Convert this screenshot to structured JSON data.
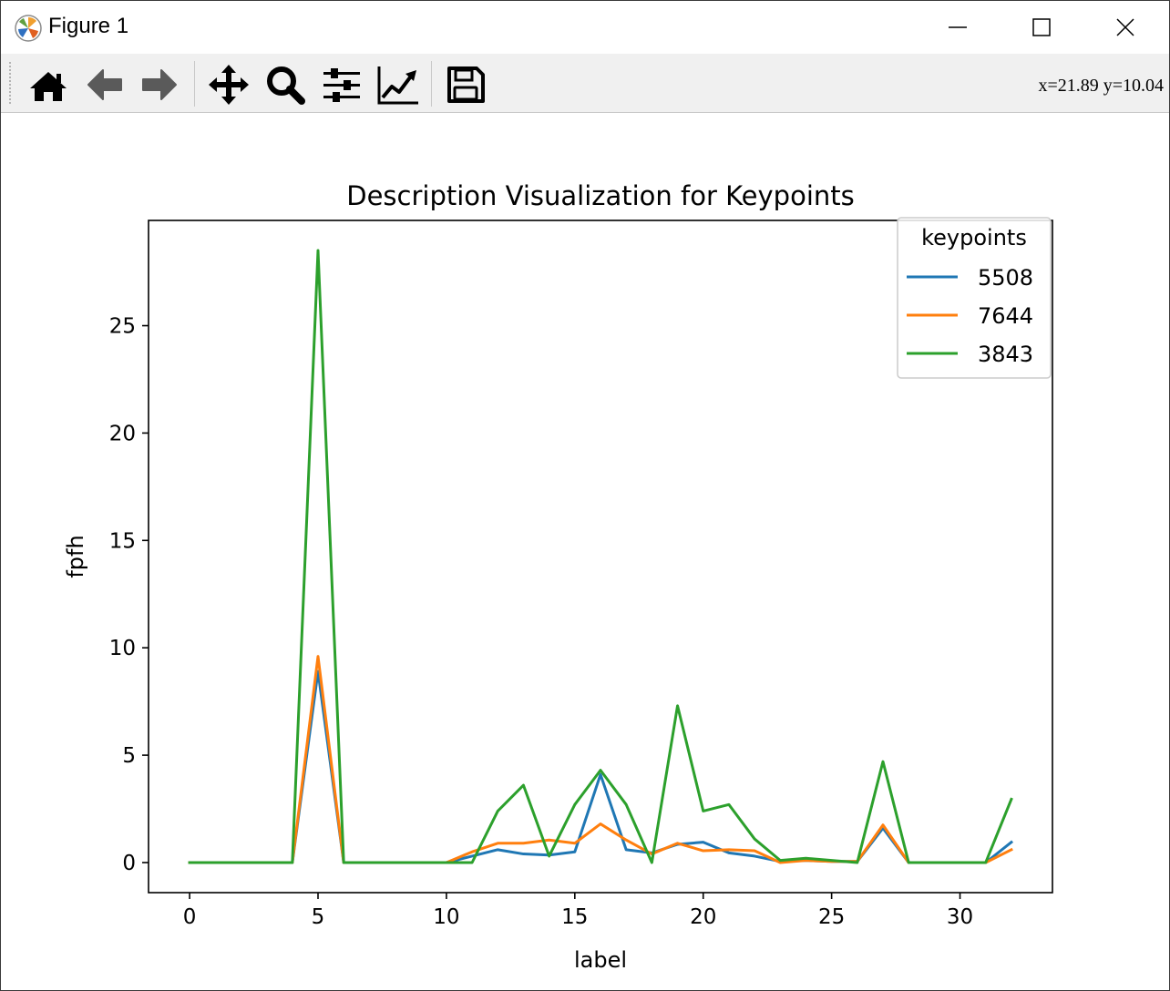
{
  "window": {
    "title": "Figure 1",
    "controls": [
      "minimize",
      "maximize",
      "close"
    ]
  },
  "toolbar": {
    "tools": [
      {
        "name": "home",
        "icon": "home-icon"
      },
      {
        "name": "back",
        "icon": "arrow-left-icon"
      },
      {
        "name": "forward",
        "icon": "arrow-right-icon"
      },
      {
        "name": "pan",
        "icon": "move-arrows-icon"
      },
      {
        "name": "zoom",
        "icon": "magnifier-icon"
      },
      {
        "name": "configure-subplots",
        "icon": "sliders-icon"
      },
      {
        "name": "edit-axis",
        "icon": "line-chart-icon"
      },
      {
        "name": "save",
        "icon": "floppy-disk-icon"
      }
    ],
    "coordinates": "x=21.89 y=10.04"
  },
  "chart_data": {
    "type": "line",
    "title": "Description Visualization for Keypoints",
    "xlabel": "label",
    "ylabel": "fpfh",
    "xlim": [
      -1.6,
      33.6
    ],
    "ylim": [
      -1.4,
      29.9
    ],
    "xticks": [
      0,
      5,
      10,
      15,
      20,
      25,
      30
    ],
    "yticks": [
      0,
      5,
      10,
      15,
      20,
      25
    ],
    "grid": false,
    "legend": {
      "title": "keypoints",
      "placement": "top-right"
    },
    "x": [
      0,
      1,
      2,
      3,
      4,
      5,
      6,
      7,
      8,
      9,
      10,
      11,
      12,
      13,
      14,
      15,
      16,
      17,
      18,
      19,
      20,
      21,
      22,
      23,
      24,
      25,
      26,
      27,
      28,
      29,
      30,
      31,
      32
    ],
    "series": [
      {
        "name": "5508",
        "color": "#1f77b4",
        "values": [
          0,
          0,
          0,
          0,
          0,
          8.9,
          0,
          0,
          0,
          0,
          0,
          0.3,
          0.6,
          0.4,
          0.35,
          0.5,
          4.1,
          0.6,
          0.45,
          0.85,
          0.95,
          0.45,
          0.3,
          0.05,
          0.1,
          0.05,
          0.05,
          1.6,
          0,
          0,
          0,
          0,
          0.95
        ]
      },
      {
        "name": "7644",
        "color": "#ff7f0e",
        "values": [
          0,
          0,
          0,
          0,
          0,
          9.6,
          0,
          0,
          0,
          0,
          0,
          0.5,
          0.9,
          0.9,
          1.05,
          0.9,
          1.8,
          1.05,
          0.4,
          0.9,
          0.55,
          0.6,
          0.55,
          0,
          0.1,
          0.05,
          0.05,
          1.75,
          0,
          0,
          0,
          0,
          0.6
        ]
      },
      {
        "name": "3843",
        "color": "#2ca02c",
        "values": [
          0,
          0,
          0,
          0,
          0,
          28.5,
          0,
          0,
          0,
          0,
          0,
          0,
          2.4,
          3.6,
          0.3,
          2.7,
          4.3,
          2.7,
          0,
          7.3,
          2.4,
          2.7,
          1.1,
          0.1,
          0.2,
          0.1,
          0,
          4.7,
          0,
          0,
          0,
          0,
          2.95
        ]
      }
    ]
  }
}
